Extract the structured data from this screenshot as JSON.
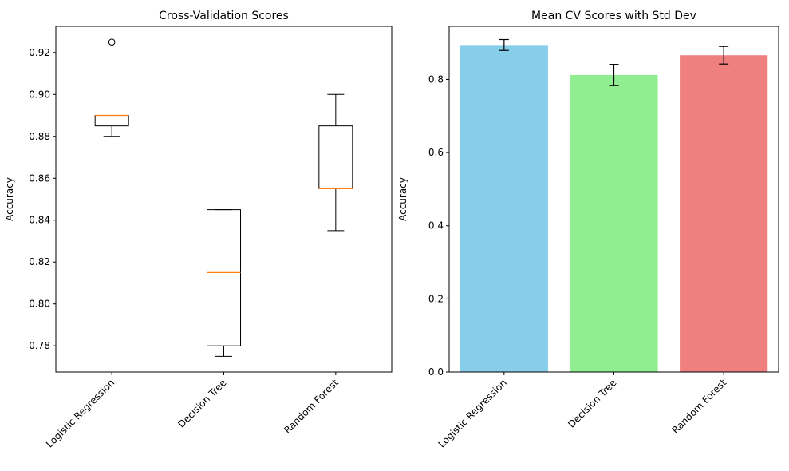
{
  "chart_data": [
    {
      "type": "box",
      "title": "Cross-Validation Scores",
      "xlabel": "",
      "ylabel": "Accuracy",
      "categories": [
        "Logistic Regression",
        "Decision Tree",
        "Random Forest"
      ],
      "ylim": [
        0.7675,
        0.9325
      ],
      "yticks": [
        0.78,
        0.8,
        0.82,
        0.84,
        0.86,
        0.88,
        0.9,
        0.92
      ],
      "ytick_labels": [
        "0.78",
        "0.80",
        "0.82",
        "0.84",
        "0.86",
        "0.88",
        "0.90",
        "0.92"
      ],
      "boxes": [
        {
          "whisker_low": 0.88,
          "q1": 0.885,
          "median": 0.89,
          "q3": 0.89,
          "whisker_high": 0.89,
          "outliers": [
            0.925
          ]
        },
        {
          "whisker_low": 0.775,
          "q1": 0.78,
          "median": 0.815,
          "q3": 0.845,
          "whisker_high": 0.845,
          "outliers": []
        },
        {
          "whisker_low": 0.835,
          "q1": 0.855,
          "median": 0.855,
          "q3": 0.885,
          "whisker_high": 0.9,
          "outliers": []
        }
      ],
      "colors": {
        "box": "#000000",
        "median": "#ff7f0e"
      },
      "grid": false,
      "xtick_rotation_deg": 45
    },
    {
      "type": "bar",
      "title": "Mean CV Scores with Std Dev",
      "xlabel": "",
      "ylabel": "Accuracy",
      "categories": [
        "Logistic Regression",
        "Decision Tree",
        "Random Forest"
      ],
      "values": [
        0.894,
        0.812,
        0.866
      ],
      "errors": [
        0.015,
        0.029,
        0.024
      ],
      "ylim": [
        0,
        0.945
      ],
      "yticks": [
        0.0,
        0.2,
        0.4,
        0.6,
        0.8
      ],
      "ytick_labels": [
        "0.0",
        "0.2",
        "0.4",
        "0.6",
        "0.8"
      ],
      "colors": [
        "#87ceeb",
        "#90ee90",
        "#f08080"
      ],
      "grid": false,
      "xtick_rotation_deg": 45
    }
  ]
}
